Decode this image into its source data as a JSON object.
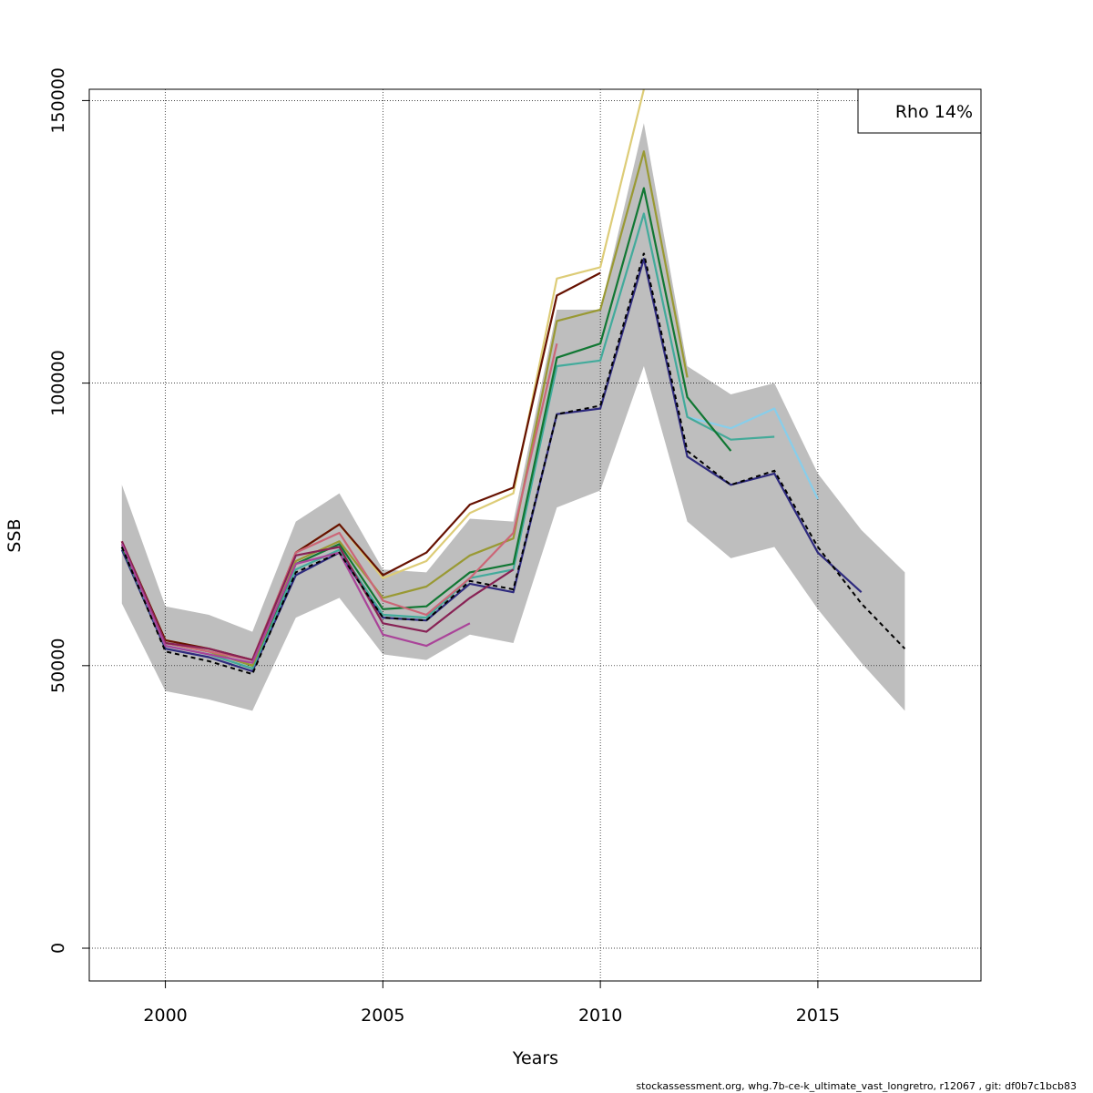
{
  "chart_data": {
    "type": "line",
    "title": "",
    "xlabel": "Years",
    "ylabel": "SSB",
    "xlim": [
      1998.25,
      2018.75
    ],
    "ylim": [
      -5800,
      152000
    ],
    "x_ticks": [
      2000,
      2005,
      2010,
      2015
    ],
    "y_ticks": [
      0,
      50000,
      100000,
      150000
    ],
    "grid": true,
    "legend_text": "Rho 14%",
    "legend_placement": "top-right",
    "confidence_band": {
      "color": "#bebebe",
      "x": [
        1999,
        2000,
        2001,
        2002,
        2003,
        2004,
        2005,
        2006,
        2007,
        2008,
        2009,
        2010,
        2011,
        2012,
        2013,
        2014,
        2015,
        2016,
        2017
      ],
      "lower": [
        61000,
        45500,
        44000,
        42000,
        58500,
        62000,
        52000,
        51000,
        55500,
        54000,
        78000,
        81000,
        103000,
        75500,
        69000,
        71000,
        60000,
        50500,
        42000
      ],
      "upper": [
        82000,
        60500,
        59000,
        56000,
        75500,
        80500,
        67000,
        66500,
        76000,
        75500,
        113000,
        113000,
        146000,
        103000,
        98000,
        100000,
        84000,
        74000,
        66500
      ]
    },
    "base_series": {
      "style": "dashed",
      "color": "#000000",
      "x": [
        1999,
        2000,
        2001,
        2002,
        2003,
        2004,
        2005,
        2006,
        2007,
        2008,
        2009,
        2010,
        2011,
        2012,
        2013,
        2014,
        2015,
        2016,
        2017
      ],
      "values": [
        71000,
        52500,
        50800,
        48500,
        66500,
        70000,
        58500,
        58000,
        65000,
        63500,
        94500,
        96000,
        123000,
        88000,
        82000,
        84500,
        71000,
        61000,
        53000
      ]
    },
    "series": [
      {
        "color": "#2e2a7e",
        "x": [
          1999,
          2000,
          2001,
          2002,
          2003,
          2004,
          2005,
          2006,
          2007,
          2008,
          2009,
          2010,
          2011,
          2012,
          2013,
          2014,
          2015,
          2016
        ],
        "values": [
          70500,
          53000,
          51500,
          49000,
          66000,
          70000,
          58500,
          58000,
          64500,
          63000,
          94500,
          95500,
          122000,
          87000,
          82000,
          84000,
          70000,
          63000
        ]
      },
      {
        "color": "#87ceeb",
        "x": [
          1999,
          2000,
          2001,
          2002,
          2003,
          2004,
          2005,
          2006,
          2007,
          2008,
          2009,
          2010,
          2011,
          2012,
          2013,
          2014,
          2015
        ],
        "values": [
          71000,
          53500,
          52000,
          49500,
          67000,
          70500,
          59000,
          58500,
          65500,
          67000,
          103000,
          104000,
          130000,
          94000,
          92000,
          95500,
          79500
        ]
      },
      {
        "color": "#44aa99",
        "x": [
          1999,
          2000,
          2001,
          2002,
          2003,
          2004,
          2005,
          2006,
          2007,
          2008,
          2009,
          2010,
          2011,
          2012,
          2013,
          2014
        ],
        "values": [
          71000,
          53500,
          52000,
          49500,
          67000,
          70500,
          59000,
          58500,
          65500,
          67000,
          103000,
          104000,
          130000,
          94000,
          90000,
          90500
        ]
      },
      {
        "color": "#117733",
        "x": [
          1999,
          2000,
          2001,
          2002,
          2003,
          2004,
          2005,
          2006,
          2007,
          2008,
          2009,
          2010,
          2011,
          2012,
          2013
        ],
        "values": [
          71000,
          54000,
          52500,
          50000,
          68000,
          71500,
          60000,
          60500,
          66500,
          68000,
          104500,
          107000,
          134500,
          97500,
          88000
        ]
      },
      {
        "color": "#999933",
        "x": [
          1999,
          2000,
          2001,
          2002,
          2003,
          2004,
          2005,
          2006,
          2007,
          2008,
          2009,
          2010,
          2011,
          2012
        ],
        "values": [
          71500,
          54000,
          52500,
          50000,
          68500,
          72000,
          62000,
          64000,
          69500,
          72500,
          111000,
          113000,
          141000,
          101000
        ]
      },
      {
        "color": "#ddcc77",
        "x": [
          1999,
          2000,
          2001,
          2002,
          2003,
          2004,
          2005,
          2006,
          2007,
          2008,
          2009,
          2010,
          2011
        ],
        "values": [
          72000,
          54500,
          53000,
          51000,
          70000,
          75000,
          65500,
          68500,
          77000,
          80500,
          118500,
          120500,
          152000
        ]
      },
      {
        "color": "#661100",
        "x": [
          1999,
          2000,
          2001,
          2002,
          2003,
          2004,
          2005,
          2006,
          2007,
          2008,
          2009,
          2010
        ],
        "values": [
          72000,
          54500,
          53000,
          51000,
          70000,
          75000,
          66000,
          70000,
          78500,
          81500,
          115500,
          119500
        ]
      },
      {
        "color": "#cc6677",
        "x": [
          1999,
          2000,
          2001,
          2002,
          2003,
          2004,
          2005,
          2006,
          2007,
          2008,
          2009
        ],
        "values": [
          72000,
          54000,
          52500,
          51000,
          70000,
          73500,
          61500,
          59000,
          65500,
          73500,
          107000
        ]
      },
      {
        "color": "#882255",
        "x": [
          1999,
          2000,
          2001,
          2002,
          2003,
          2004,
          2005,
          2006,
          2007,
          2008
        ],
        "values": [
          72000,
          54000,
          53000,
          51000,
          69500,
          71000,
          57500,
          56000,
          62000,
          67000
        ]
      },
      {
        "color": "#aa4499",
        "x": [
          1999,
          2000,
          2001,
          2002,
          2003,
          2004,
          2005,
          2006,
          2007
        ],
        "values": [
          71500,
          53500,
          52000,
          50500,
          68000,
          70000,
          55500,
          53500,
          57500
        ]
      }
    ]
  },
  "footer": "stockassessment.org, whg.7b-ce-k_ultimate_vast_longretro, r12067 , git: df0b7c1bcb83"
}
